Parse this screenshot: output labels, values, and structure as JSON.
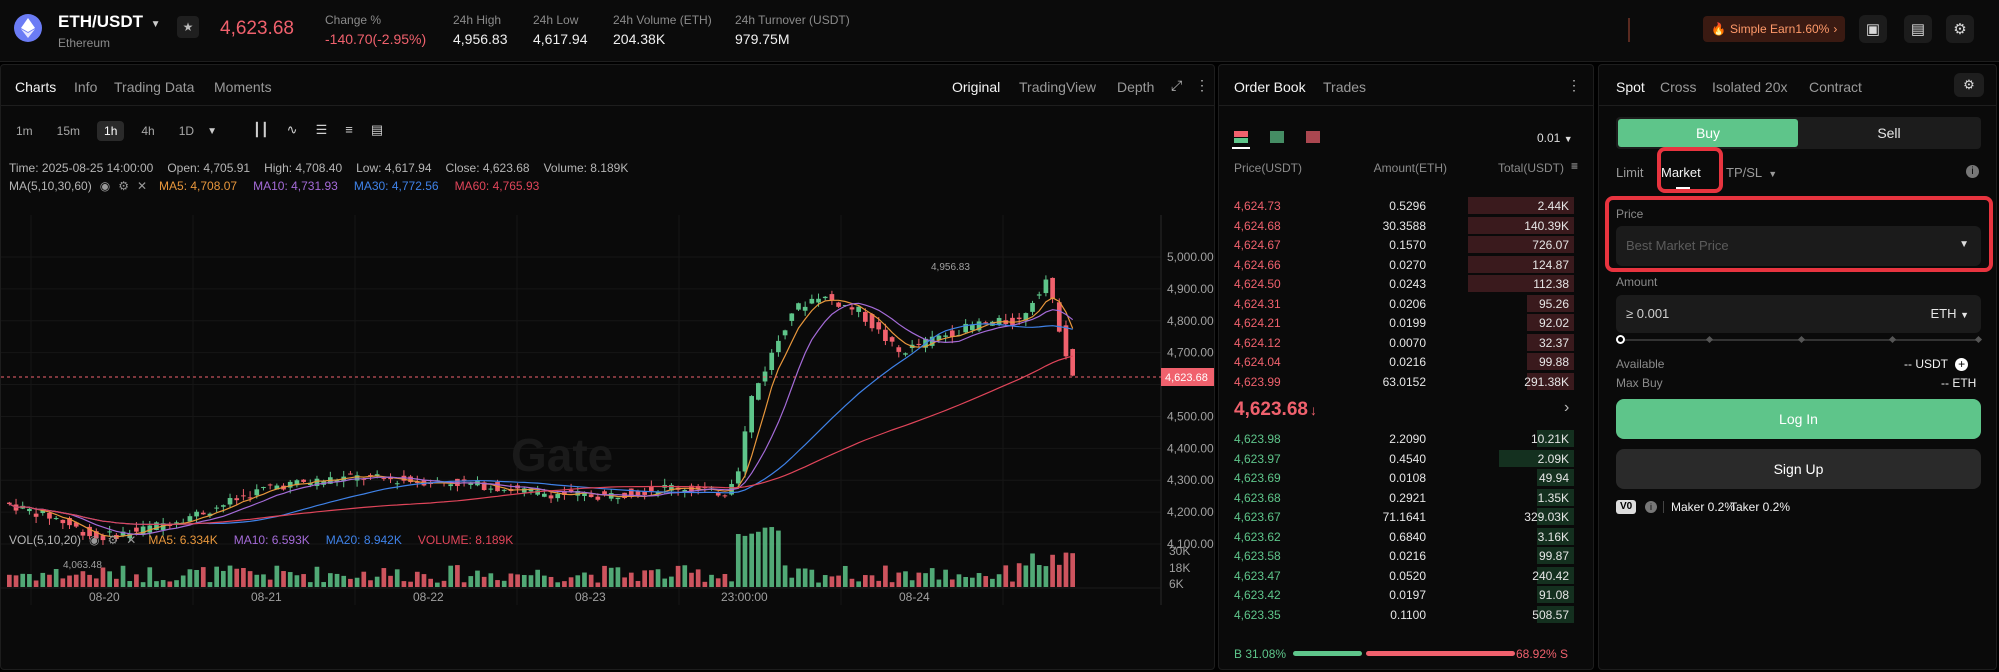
{
  "header": {
    "pair": "ETH/USDT",
    "coin_name": "Ethereum",
    "last_price": "4,623.68",
    "stats": [
      {
        "label": "Change %",
        "value": "-140.70(-2.95%)"
      },
      {
        "label": "24h High",
        "value": "4,956.83"
      },
      {
        "label": "24h Low",
        "value": "4,617.94"
      },
      {
        "label": "24h Volume (ETH)",
        "value": "204.38K"
      },
      {
        "label": "24h Turnover (USDT)",
        "value": "979.75M"
      }
    ],
    "simple_earn": "Simple Earn1.60%"
  },
  "chart_panel": {
    "tabs": [
      "Charts",
      "Info",
      "Trading Data",
      "Moments"
    ],
    "views": [
      "Original",
      "TradingView",
      "Depth"
    ],
    "timeframes": [
      "1m",
      "15m",
      "1h",
      "4h",
      "1D"
    ],
    "ohlc": {
      "time": "Time: 2025-08-25 14:00:00",
      "open": "Open: 4,705.91",
      "high": "High: 4,708.40",
      "low": "Low: 4,617.94",
      "close": "Close: 4,623.68",
      "volume": "Volume: 8.189K"
    },
    "ma_label": "MA(5,10,30,60)",
    "ma_values": [
      {
        "text": "MA5: 4,708.07",
        "color": "#e8973c"
      },
      {
        "text": "MA10: 4,731.93",
        "color": "#a46bd8"
      },
      {
        "text": "MA30: 4,772.56",
        "color": "#3f82e8"
      },
      {
        "text": "MA60: 4,765.93",
        "color": "#e0455a"
      }
    ],
    "vol_label": "VOL(5,10,20)",
    "vol_values": [
      {
        "text": "MA5: 6.334K",
        "color": "#e8973c"
      },
      {
        "text": "MA10: 6.593K",
        "color": "#a46bd8"
      },
      {
        "text": "MA20: 8.942K",
        "color": "#3f82e8"
      },
      {
        "text": "VOLUME: 8.189K",
        "color": "#e0455a"
      }
    ],
    "high_marker": "4,956.83",
    "low_marker": "4,063.48",
    "price_tag": "4,623.68",
    "y_ticks": [
      "5,000.00",
      "4,900.00",
      "4,800.00",
      "4,700.00",
      "4,500.00",
      "4,400.00",
      "4,300.00",
      "4,200.00",
      "4,100.00"
    ],
    "vol_ticks": [
      "30K",
      "18K",
      "6K"
    ],
    "x_ticks": [
      "08-20",
      "08-21",
      "08-22",
      "08-23",
      "23:00:00",
      "08-24"
    ],
    "watermark": "Gate"
  },
  "orderbook": {
    "tabs": [
      "Order Book",
      "Trades"
    ],
    "precision": "0.01",
    "columns": [
      "Price(USDT)",
      "Amount(ETH)",
      "Total(USDT)"
    ],
    "asks": [
      {
        "price": "4,624.73",
        "amount": "0.5296",
        "total": "2.44K",
        "depth": 0.85
      },
      {
        "price": "4,624.68",
        "amount": "30.3588",
        "total": "140.39K",
        "depth": 0.85
      },
      {
        "price": "4,624.67",
        "amount": "0.1570",
        "total": "726.07",
        "depth": 0.85
      },
      {
        "price": "4,624.66",
        "amount": "0.0270",
        "total": "124.87",
        "depth": 0.85
      },
      {
        "price": "4,624.50",
        "amount": "0.0243",
        "total": "112.38",
        "depth": 0.85
      },
      {
        "price": "4,624.31",
        "amount": "0.0206",
        "total": "95.26",
        "depth": 0.38
      },
      {
        "price": "4,624.21",
        "amount": "0.0199",
        "total": "92.02",
        "depth": 0.38
      },
      {
        "price": "4,624.12",
        "amount": "0.0070",
        "total": "32.37",
        "depth": 0.38
      },
      {
        "price": "4,624.04",
        "amount": "0.0216",
        "total": "99.88",
        "depth": 0.38
      },
      {
        "price": "4,623.99",
        "amount": "63.0152",
        "total": "291.38K",
        "depth": 0.38
      }
    ],
    "mid_price": "4,623.68",
    "bids": [
      {
        "price": "4,623.98",
        "amount": "2.2090",
        "total": "10.21K",
        "depth": 0.3
      },
      {
        "price": "4,623.97",
        "amount": "0.4540",
        "total": "2.09K",
        "depth": 0.6
      },
      {
        "price": "4,623.69",
        "amount": "0.0108",
        "total": "49.94",
        "depth": 0.3
      },
      {
        "price": "4,623.68",
        "amount": "0.2921",
        "total": "1.35K",
        "depth": 0.3
      },
      {
        "price": "4,623.67",
        "amount": "71.1641",
        "total": "329.03K",
        "depth": 0.3
      },
      {
        "price": "4,623.62",
        "amount": "0.6840",
        "total": "3.16K",
        "depth": 0.3
      },
      {
        "price": "4,623.58",
        "amount": "0.0216",
        "total": "99.87",
        "depth": 0.3
      },
      {
        "price": "4,623.47",
        "amount": "0.0520",
        "total": "240.42",
        "depth": 0.3
      },
      {
        "price": "4,623.42",
        "amount": "0.0197",
        "total": "91.08",
        "depth": 0.3
      },
      {
        "price": "4,623.35",
        "amount": "0.1100",
        "total": "508.57",
        "depth": 0.3
      }
    ],
    "buy_ratio": "B 31.08%",
    "sell_ratio": "68.92% S",
    "buy_fraction": 0.3108
  },
  "trade": {
    "tabs": [
      "Spot",
      "Cross",
      "Isolated 20x",
      "Contract"
    ],
    "buy_label": "Buy",
    "sell_label": "Sell",
    "order_types": [
      "Limit",
      "Market",
      "TP/SL"
    ],
    "price_label": "Price",
    "price_placeholder": "Best Market Price",
    "amount_label": "Amount",
    "amount_placeholder": "≥ 0.001",
    "amount_unit": "ETH",
    "available_label": "Available",
    "available_value": "-- USDT",
    "max_buy_label": "Max Buy",
    "max_buy_value": "-- ETH",
    "login_label": "Log In",
    "signup_label": "Sign Up",
    "vip_badge": "V0",
    "maker_fee": "Maker 0.2%",
    "taker_fee": "Taker 0.2%"
  },
  "colors": {
    "up": "#5ec58a",
    "down": "#f0616d",
    "accent_buy": "#5ec58a",
    "highlight": "#e8343f"
  },
  "icons": [
    "eth-coin-icon",
    "chevron-down-icon",
    "star-icon",
    "fire-icon",
    "chevron-right-icon",
    "wallet-icon",
    "book-icon",
    "settings-icon",
    "expand-icon",
    "more-icon",
    "eye-icon",
    "gear-icon",
    "close-icon",
    "arrow-down-icon",
    "info-icon",
    "plus-icon",
    "robot-icon"
  ]
}
